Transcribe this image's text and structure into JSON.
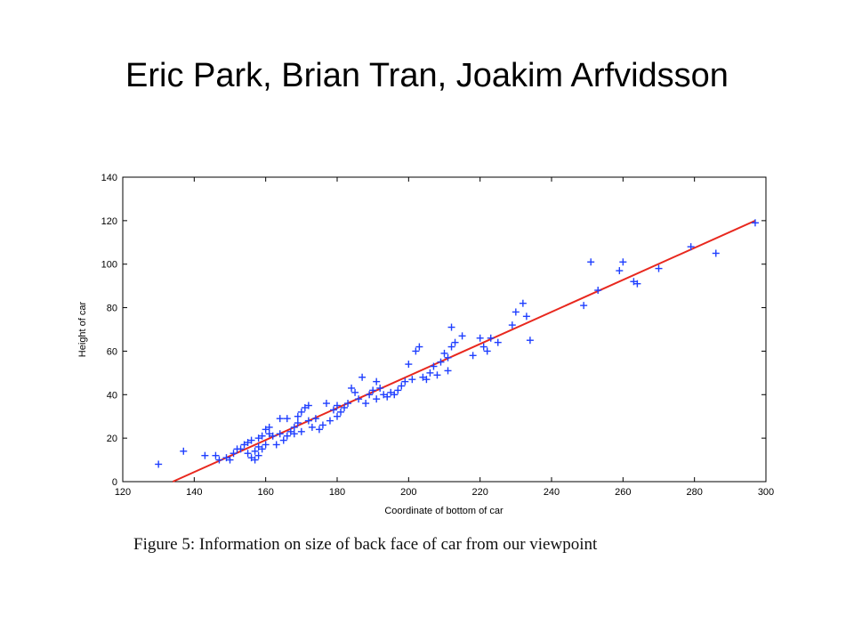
{
  "slide": {
    "title": "Eric Park, Brian Tran, Joakim Arfvidsson",
    "caption": "Figure 5: Information on size of back face of car from our viewpoint"
  },
  "chart_data": {
    "type": "scatter",
    "title": "",
    "xlabel": "Coordinate of bottom of car",
    "ylabel": "Height of car",
    "xlim": [
      120,
      300
    ],
    "ylim": [
      0,
      140
    ],
    "xticks": [
      120,
      140,
      160,
      180,
      200,
      220,
      240,
      260,
      280,
      300
    ],
    "yticks": [
      0,
      20,
      40,
      60,
      80,
      100,
      120,
      140
    ],
    "grid": false,
    "legend": "none",
    "colors": {
      "points": "#1f3fff",
      "fit": "#e8281e",
      "axis": "#000000"
    },
    "series": [
      {
        "kind": "scatter",
        "marker": "+",
        "points": [
          [
            130,
            8
          ],
          [
            137,
            14
          ],
          [
            143,
            12
          ],
          [
            146,
            12
          ],
          [
            147,
            10
          ],
          [
            149,
            11
          ],
          [
            150,
            10
          ],
          [
            151,
            13
          ],
          [
            152,
            15
          ],
          [
            153,
            15
          ],
          [
            154,
            17
          ],
          [
            155,
            18
          ],
          [
            155,
            13
          ],
          [
            156,
            19
          ],
          [
            156,
            11
          ],
          [
            157,
            14
          ],
          [
            157,
            10
          ],
          [
            158,
            16
          ],
          [
            158,
            20
          ],
          [
            158,
            12
          ],
          [
            159,
            15
          ],
          [
            159,
            21
          ],
          [
            160,
            17
          ],
          [
            160,
            24
          ],
          [
            161,
            22
          ],
          [
            161,
            25
          ],
          [
            162,
            21
          ],
          [
            163,
            17
          ],
          [
            164,
            22
          ],
          [
            164,
            29
          ],
          [
            165,
            19
          ],
          [
            166,
            29
          ],
          [
            166,
            21
          ],
          [
            167,
            23
          ],
          [
            168,
            22
          ],
          [
            168,
            25
          ],
          [
            169,
            30
          ],
          [
            169,
            27
          ],
          [
            170,
            32
          ],
          [
            170,
            23
          ],
          [
            171,
            34
          ],
          [
            172,
            28
          ],
          [
            172,
            35
          ],
          [
            173,
            25
          ],
          [
            174,
            29
          ],
          [
            175,
            24
          ],
          [
            176,
            26
          ],
          [
            177,
            36
          ],
          [
            178,
            28
          ],
          [
            179,
            33
          ],
          [
            180,
            35
          ],
          [
            180,
            30
          ],
          [
            181,
            32
          ],
          [
            182,
            34
          ],
          [
            183,
            36
          ],
          [
            184,
            43
          ],
          [
            185,
            41
          ],
          [
            186,
            38
          ],
          [
            187,
            48
          ],
          [
            188,
            36
          ],
          [
            189,
            40
          ],
          [
            190,
            42
          ],
          [
            191,
            38
          ],
          [
            191,
            46
          ],
          [
            192,
            43
          ],
          [
            193,
            40
          ],
          [
            194,
            39
          ],
          [
            195,
            41
          ],
          [
            196,
            40
          ],
          [
            197,
            42
          ],
          [
            198,
            44
          ],
          [
            199,
            46
          ],
          [
            200,
            54
          ],
          [
            201,
            47
          ],
          [
            202,
            60
          ],
          [
            203,
            62
          ],
          [
            204,
            48
          ],
          [
            205,
            47
          ],
          [
            206,
            50
          ],
          [
            207,
            53
          ],
          [
            208,
            49
          ],
          [
            209,
            55
          ],
          [
            210,
            59
          ],
          [
            211,
            51
          ],
          [
            211,
            57
          ],
          [
            212,
            62
          ],
          [
            212,
            71
          ],
          [
            213,
            64
          ],
          [
            215,
            67
          ],
          [
            218,
            58
          ],
          [
            220,
            66
          ],
          [
            221,
            62
          ],
          [
            222,
            60
          ],
          [
            223,
            66
          ],
          [
            225,
            64
          ],
          [
            229,
            72
          ],
          [
            230,
            78
          ],
          [
            232,
            82
          ],
          [
            233,
            76
          ],
          [
            234,
            65
          ],
          [
            249,
            81
          ],
          [
            251,
            101
          ],
          [
            253,
            88
          ],
          [
            259,
            97
          ],
          [
            260,
            101
          ],
          [
            263,
            92
          ],
          [
            264,
            91
          ],
          [
            270,
            98
          ],
          [
            279,
            108
          ],
          [
            286,
            105
          ],
          [
            297,
            119
          ]
        ]
      },
      {
        "kind": "line",
        "points": [
          [
            134,
            0
          ],
          [
            297,
            120
          ]
        ]
      }
    ]
  }
}
